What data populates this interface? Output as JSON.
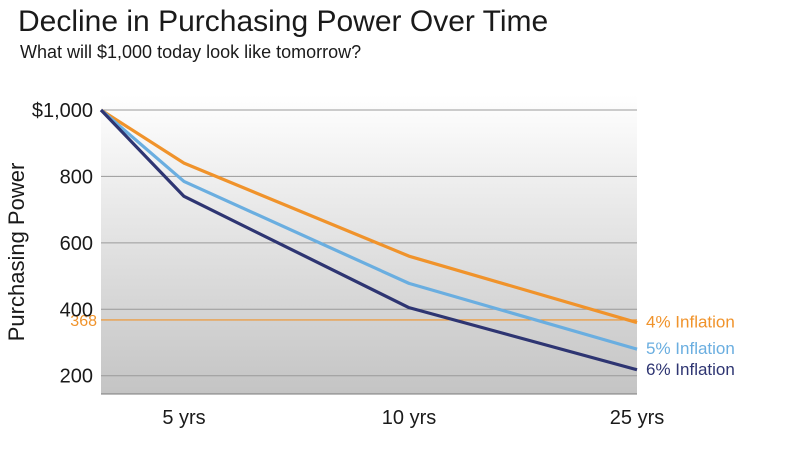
{
  "chart_data": {
    "type": "line",
    "title": "Decline in Purchasing Power Over Time",
    "subtitle": "What will $1,000 today look like tomorrow?",
    "ylabel": "Purchasing Power",
    "xlabel": "",
    "x": [
      0,
      5,
      10,
      25
    ],
    "x_tick_labels": [
      "",
      "5 yrs",
      "10 yrs",
      "25 yrs"
    ],
    "y_ticks": [
      200,
      400,
      600,
      800,
      1000
    ],
    "y_tick_labels": [
      "200",
      "400",
      "600",
      "800",
      "$1,000"
    ],
    "ylim": [
      145,
      1000
    ],
    "grid": true,
    "series": [
      {
        "name": "4% Inflation",
        "values": [
          1000,
          840,
          560,
          360
        ],
        "color": "#f0932b"
      },
      {
        "name": "5% Inflation",
        "values": [
          1000,
          785,
          478,
          280
        ],
        "color": "#6aaee0"
      },
      {
        "name": "6% Inflation",
        "values": [
          1000,
          740,
          405,
          218
        ],
        "color": "#2e3572"
      }
    ],
    "reference_line": {
      "value": 368,
      "label": "368",
      "color": "#f0932b"
    }
  }
}
